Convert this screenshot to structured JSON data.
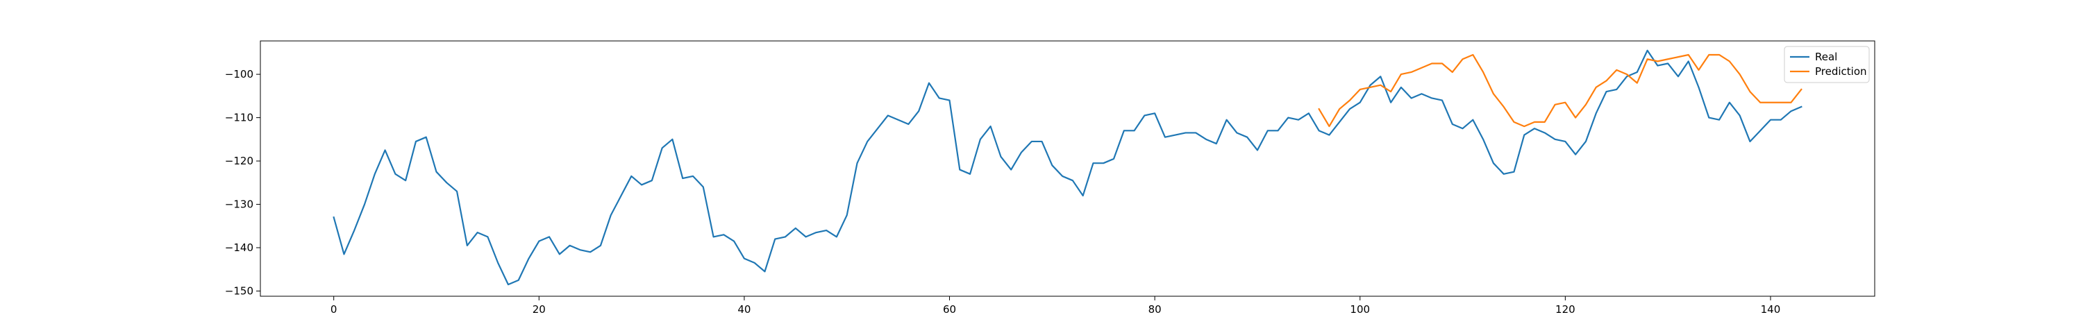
{
  "chart_data": {
    "type": "line",
    "title": "",
    "xlabel": "",
    "ylabel": "",
    "xlim": [
      -7.15,
      150.15
    ],
    "ylim": [
      -151.2,
      -92.3
    ],
    "x_ticks": [
      0,
      20,
      40,
      60,
      80,
      100,
      120,
      140
    ],
    "y_ticks": [
      -150,
      -140,
      -130,
      -120,
      -110,
      -100
    ],
    "grid": false,
    "legend_position": "upper right",
    "series": [
      {
        "name": "Real",
        "color": "#1f77b4",
        "x_start": 0,
        "values": [
          -133,
          -141.5,
          -136,
          -130,
          -123,
          -117.5,
          -123,
          -124.5,
          -115.5,
          -114.5,
          -122.5,
          -125,
          -127,
          -139.5,
          -136.5,
          -137.5,
          -143.5,
          -148.5,
          -147.5,
          -142.5,
          -138.5,
          -137.5,
          -141.5,
          -139.5,
          -140.5,
          -141,
          -139.5,
          -132.5,
          -128,
          -123.5,
          -125.5,
          -124.5,
          -117,
          -115,
          -124,
          -123.5,
          -126,
          -137.5,
          -137,
          -138.5,
          -142.5,
          -143.5,
          -145.5,
          -138,
          -137.5,
          -135.5,
          -137.5,
          -136.5,
          -136,
          -137.5,
          -132.5,
          -120.5,
          -115.5,
          -112.5,
          -109.5,
          -110.5,
          -111.5,
          -108.5,
          -102,
          -105.5,
          -106,
          -122,
          -123,
          -115,
          -112,
          -119,
          -122,
          -118,
          -115.5,
          -115.5,
          -121,
          -123.5,
          -124.5,
          -128,
          -120.5,
          -120.5,
          -119.5,
          -113,
          -113,
          -109.5,
          -109,
          -114.5,
          -114,
          -113.5,
          -113.5,
          -115,
          -116,
          -110.5,
          -113.5,
          -114.5,
          -117.5,
          -113,
          -113,
          -110,
          -110.5,
          -109,
          -113,
          -114,
          -111,
          -108,
          -106.5,
          -102.5,
          -100.5,
          -106.5,
          -103,
          -105.5,
          -104.5,
          -105.5,
          -106,
          -111.5,
          -112.5,
          -110.5,
          -115,
          -120.5,
          -123,
          -122.5,
          -114,
          -112.5,
          -113.5,
          -115,
          -115.5,
          -118.5,
          -115.5,
          -109,
          -104,
          -103.5,
          -100.5,
          -99.5,
          -94.5,
          -98,
          -97.5,
          -100.5,
          -97,
          -103,
          -110,
          -110.5,
          -106.5,
          -109.5,
          -115.5,
          -113,
          -110.5,
          -110.5,
          -108.5,
          -107.5
        ]
      },
      {
        "name": "Prediction",
        "color": "#ff7f0e",
        "x_start": 96,
        "values": [
          -108,
          -112,
          -108,
          -106,
          -103.5,
          -103,
          -102.5,
          -104,
          -100,
          -99.5,
          -98.5,
          -97.5,
          -97.5,
          -99.5,
          -96.5,
          -95.5,
          -99.5,
          -104.5,
          -107.5,
          -111,
          -112,
          -111,
          -111,
          -107,
          -106.5,
          -110,
          -107,
          -103,
          -101.5,
          -99,
          -100,
          -102,
          -96.5,
          -97,
          -96.5,
          -96,
          -95.5,
          -99,
          -95.5,
          -95.5,
          -97,
          -100,
          -104,
          -106.5,
          -106.5,
          -106.5,
          -106.5,
          -103.5
        ]
      }
    ]
  }
}
